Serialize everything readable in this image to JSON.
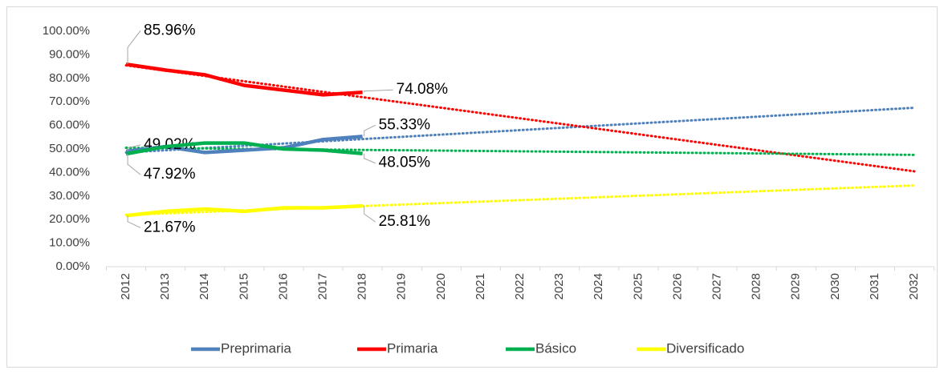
{
  "chart_data": {
    "type": "line",
    "categories": [
      "2012",
      "2013",
      "2014",
      "2015",
      "2016",
      "2017",
      "2018",
      "2019",
      "2020",
      "2021",
      "2022",
      "2023",
      "2024",
      "2025",
      "2026",
      "2027",
      "2028",
      "2029",
      "2030",
      "2031",
      "2032"
    ],
    "series": [
      {
        "name": "Preprimaria",
        "color": "#4f81bd",
        "values": [
          49.02,
          51,
          48.5,
          49.5,
          50.5,
          54,
          55.33,
          null,
          null,
          null,
          null,
          null,
          null,
          null,
          null,
          null,
          null,
          null,
          null,
          null,
          null
        ],
        "value_labels": [
          "49.02%",
          null,
          null,
          null,
          null,
          null,
          "55.33%",
          null,
          null,
          null,
          null,
          null,
          null,
          null,
          null,
          null,
          null,
          null,
          null,
          null,
          null
        ],
        "trend": [
          48.5,
          67.5
        ]
      },
      {
        "name": "Primaria",
        "color": "#ff0000",
        "values": [
          85.96,
          83.5,
          81.5,
          77,
          75,
          73,
          74.08,
          null,
          null,
          null,
          null,
          null,
          null,
          null,
          null,
          null,
          null,
          null,
          null,
          null,
          null
        ],
        "value_labels": [
          "85.96%",
          null,
          null,
          null,
          null,
          null,
          "74.08%",
          null,
          null,
          null,
          null,
          null,
          null,
          null,
          null,
          null,
          null,
          null,
          null,
          null,
          null
        ],
        "trend": [
          85.5,
          40.5
        ]
      },
      {
        "name": "Básico",
        "color": "#00b050",
        "values": [
          47.92,
          51,
          52.5,
          52.5,
          50,
          49.5,
          48.05,
          null,
          null,
          null,
          null,
          null,
          null,
          null,
          null,
          null,
          null,
          null,
          null,
          null,
          null
        ],
        "value_labels": [
          "47.92%",
          null,
          null,
          null,
          null,
          null,
          "48.05%",
          null,
          null,
          null,
          null,
          null,
          null,
          null,
          null,
          null,
          null,
          null,
          null,
          null,
          null
        ],
        "trend": [
          50.5,
          47.5
        ]
      },
      {
        "name": "Diversificado",
        "color": "#ffff00",
        "values": [
          21.67,
          23.5,
          24.5,
          23.5,
          25,
          25,
          25.81,
          null,
          null,
          null,
          null,
          null,
          null,
          null,
          null,
          null,
          null,
          null,
          null,
          null,
          null
        ],
        "value_labels": [
          "21.67%",
          null,
          null,
          null,
          null,
          null,
          "25.81%",
          null,
          null,
          null,
          null,
          null,
          null,
          null,
          null,
          null,
          null,
          null,
          null,
          null,
          null
        ],
        "trend": [
          22,
          34.5
        ]
      }
    ],
    "ylim": [
      0,
      100
    ],
    "yticks": [
      {
        "value": 0,
        "label": "0.00%"
      },
      {
        "value": 10,
        "label": "10.00%"
      },
      {
        "value": 20,
        "label": "20.00%"
      },
      {
        "value": 30,
        "label": "30.00%"
      },
      {
        "value": 40,
        "label": "40.00%"
      },
      {
        "value": 50,
        "label": "50.00%"
      },
      {
        "value": 60,
        "label": "60.00%"
      },
      {
        "value": 70,
        "label": "70.00%"
      },
      {
        "value": 80,
        "label": "80.00%"
      },
      {
        "value": 90,
        "label": "90.00%"
      },
      {
        "value": 100,
        "label": "100.00%"
      }
    ],
    "grid": false,
    "legend": "bottom"
  }
}
